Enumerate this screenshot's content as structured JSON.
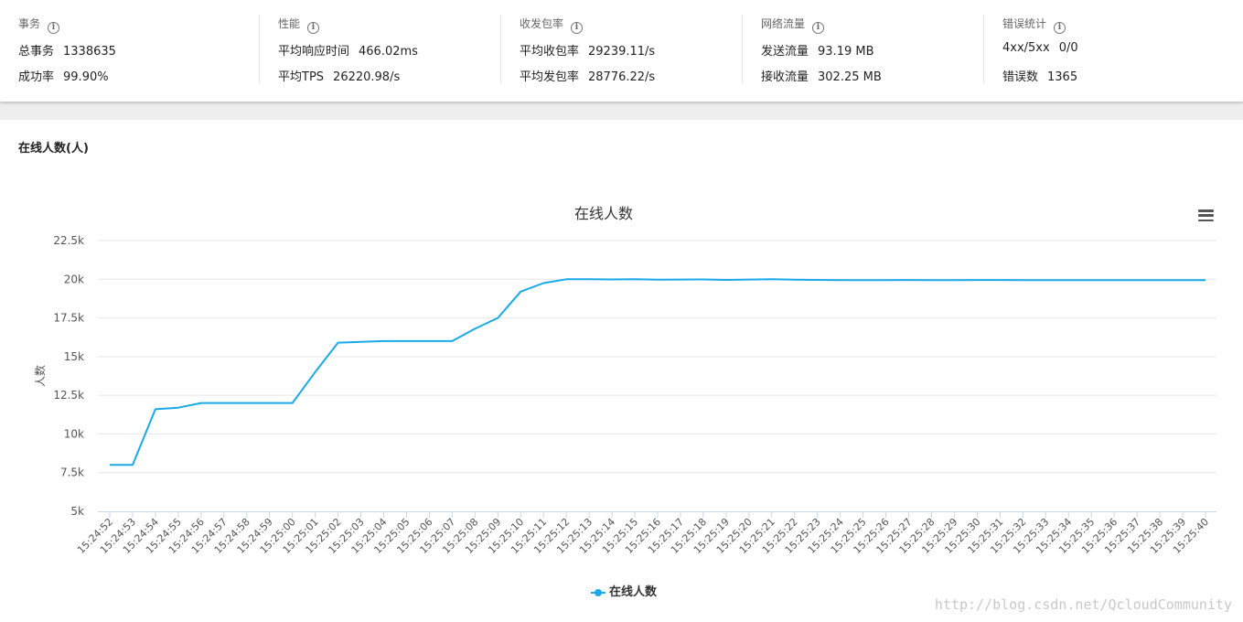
{
  "stats": [
    {
      "title": "事务",
      "rows": [
        {
          "label": "总事务",
          "value": "1338635"
        },
        {
          "label": "成功率",
          "value": "99.90%"
        }
      ]
    },
    {
      "title": "性能",
      "rows": [
        {
          "label": "平均响应时间",
          "value": "466.02ms"
        },
        {
          "label": "平均TPS",
          "value": "26220.98/s"
        }
      ]
    },
    {
      "title": "收发包率",
      "rows": [
        {
          "label": "平均收包率",
          "value": "29239.11/s"
        },
        {
          "label": "平均发包率",
          "value": "28776.22/s"
        }
      ]
    },
    {
      "title": "网络流量",
      "rows": [
        {
          "label": "发送流量",
          "value": "93.19 MB"
        },
        {
          "label": "接收流量",
          "value": "302.25 MB"
        }
      ]
    },
    {
      "title": "错误统计",
      "rows": [
        {
          "label": "4xx/5xx",
          "value": "0/0"
        },
        {
          "label": "错误数",
          "value": "1365"
        }
      ]
    }
  ],
  "info_icon_glyph": "i",
  "section_title": "在线人数(人)",
  "watermark": "http://blog.csdn.net/QcloudCommunity",
  "chart_data": {
    "type": "line",
    "title": "在线人数",
    "ylabel": "人数",
    "xlabel": "",
    "ylim": [
      5000,
      22500
    ],
    "yticks": [
      5000,
      7500,
      10000,
      12500,
      15000,
      17500,
      20000,
      22500
    ],
    "ytick_labels": [
      "5k",
      "7.5k",
      "10k",
      "12.5k",
      "15k",
      "17.5k",
      "20k",
      "22.5k"
    ],
    "grid": true,
    "legend_placement": "bottom-center",
    "color": "#1aa9e8",
    "x": [
      "15:24:52",
      "15:24:53",
      "15:24:54",
      "15:24:55",
      "15:24:56",
      "15:24:57",
      "15:24:58",
      "15:24:59",
      "15:25:00",
      "15:25:01",
      "15:25:02",
      "15:25:03",
      "15:25:04",
      "15:25:05",
      "15:25:06",
      "15:25:07",
      "15:25:08",
      "15:25:09",
      "15:25:10",
      "15:25:11",
      "15:25:12",
      "15:25:13",
      "15:25:14",
      "15:25:15",
      "15:25:16",
      "15:25:17",
      "15:25:18",
      "15:25:19",
      "15:25:20",
      "15:25:21",
      "15:25:22",
      "15:25:23",
      "15:25:24",
      "15:25:25",
      "15:25:26",
      "15:25:27",
      "15:25:28",
      "15:25:29",
      "15:25:30",
      "15:25:31",
      "15:25:32",
      "15:25:33",
      "15:25:34",
      "15:25:35",
      "15:25:36",
      "15:25:37",
      "15:25:38",
      "15:25:39",
      "15:25:40"
    ],
    "series": [
      {
        "name": "在线人数",
        "values": [
          8000,
          8000,
          11600,
          11700,
          12000,
          12000,
          12000,
          12000,
          12000,
          14000,
          15900,
          15950,
          16000,
          16000,
          16000,
          16000,
          16800,
          17500,
          19200,
          19750,
          20000,
          20000,
          19990,
          20000,
          19970,
          19980,
          19990,
          19960,
          19980,
          20000,
          19970,
          19960,
          19940,
          19940,
          19940,
          19950,
          19940,
          19940,
          19950,
          19950,
          19940,
          19940,
          19940,
          19940,
          19940,
          19940,
          19940,
          19940,
          19940
        ]
      }
    ]
  }
}
